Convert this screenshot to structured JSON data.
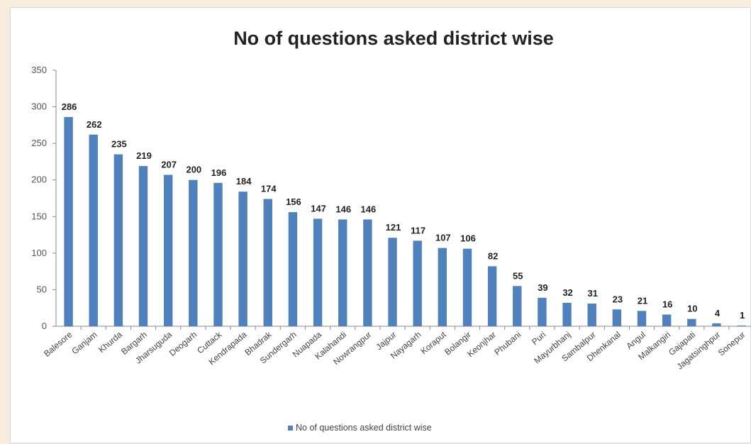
{
  "chart_data": {
    "type": "bar",
    "title": "No of questions asked district wise",
    "xlabel": "",
    "ylabel": "",
    "ylim": [
      0,
      350
    ],
    "yticks": [
      "0",
      "50",
      "100",
      "150",
      "200",
      "250",
      "300",
      "350"
    ],
    "grid": false,
    "legend_position": "bottom",
    "bar_color": "#4f81bd",
    "categories": [
      "Balesore",
      "Ganjam",
      "Khurda",
      "Bargarh",
      "Jharsuguda",
      "Deogarh",
      "Cuttack",
      "Kendrapada",
      "Bhadrak",
      "Sundergarh",
      "Nuapada",
      "Kalahandi",
      "Nowrangpur",
      "Jajpur",
      "Nayagarh",
      "Koraput",
      "Bolangir",
      "Keonjhar",
      "Phubani",
      "Puri",
      "Mayurbhanj",
      "Sambalpur",
      "Dhenkanal",
      "Angul",
      "Malkangiri",
      "Gajapati",
      "Jagatsinghpur",
      "Sonepur"
    ],
    "series": [
      {
        "name": "No of questions asked district wise",
        "values": [
          286,
          262,
          235,
          219,
          207,
          200,
          196,
          184,
          174,
          156,
          147,
          146,
          146,
          121,
          117,
          107,
          106,
          82,
          55,
          39,
          32,
          31,
          23,
          21,
          16,
          10,
          4,
          1
        ]
      }
    ]
  }
}
